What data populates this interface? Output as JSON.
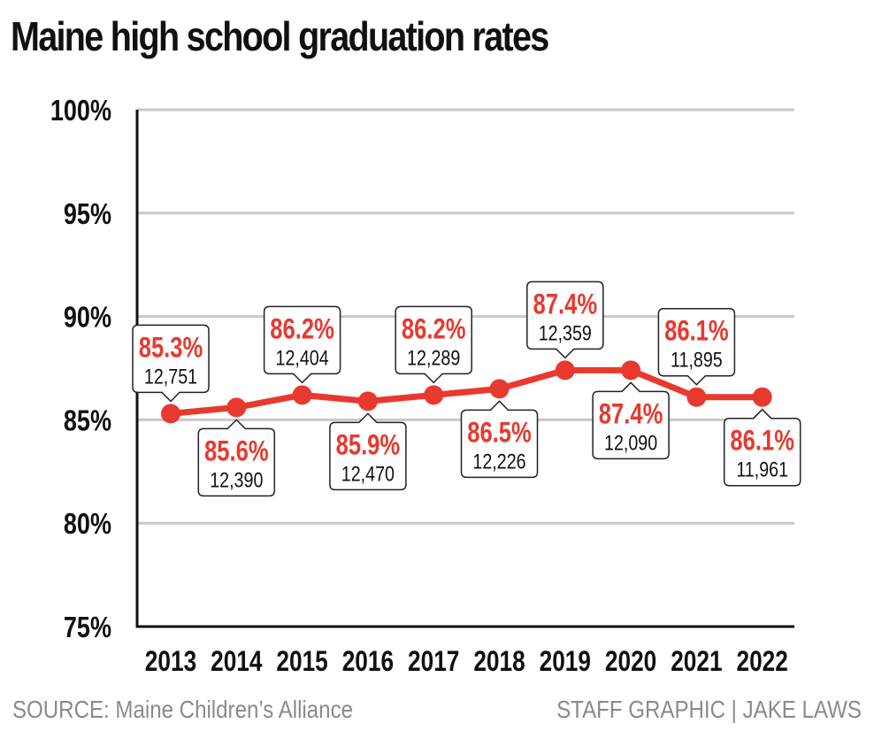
{
  "title": "Maine high school graduation rates",
  "source": "SOURCE: Maine Children’s Alliance",
  "credit": "STAFF GRAPHIC | JAKE LAWS",
  "colors": {
    "line": "#e8392f",
    "axis": "#111111",
    "grid": "#c8c8c8",
    "label_red": "#e8392f"
  },
  "chart_data": {
    "type": "line",
    "title": "Maine high school graduation rates",
    "xlabel": "",
    "ylabel": "",
    "ylim": [
      75,
      100
    ],
    "yticks": [
      75,
      80,
      85,
      90,
      95,
      100
    ],
    "ytick_labels": [
      "75%",
      "80%",
      "85%",
      "90%",
      "95%",
      "100%"
    ],
    "grid": true,
    "categories": [
      "2013",
      "2014",
      "2015",
      "2016",
      "2017",
      "2018",
      "2019",
      "2020",
      "2021",
      "2022"
    ],
    "series": [
      {
        "values": [
          85.3,
          85.6,
          86.2,
          85.9,
          86.2,
          86.5,
          87.4,
          87.4,
          86.1,
          86.1
        ]
      }
    ],
    "data_labels": [
      {
        "rate": "85.3%",
        "count": "12,751",
        "position": "above"
      },
      {
        "rate": "85.6%",
        "count": "12,390",
        "position": "below"
      },
      {
        "rate": "86.2%",
        "count": "12,404",
        "position": "above"
      },
      {
        "rate": "85.9%",
        "count": "12,470",
        "position": "below"
      },
      {
        "rate": "86.2%",
        "count": "12,289",
        "position": "above"
      },
      {
        "rate": "86.5%",
        "count": "12,226",
        "position": "below"
      },
      {
        "rate": "87.4%",
        "count": "12,359",
        "position": "above"
      },
      {
        "rate": "87.4%",
        "count": "12,090",
        "position": "below"
      },
      {
        "rate": "86.1%",
        "count": "11,895",
        "position": "above"
      },
      {
        "rate": "86.1%",
        "count": "11,961",
        "position": "below"
      }
    ]
  }
}
